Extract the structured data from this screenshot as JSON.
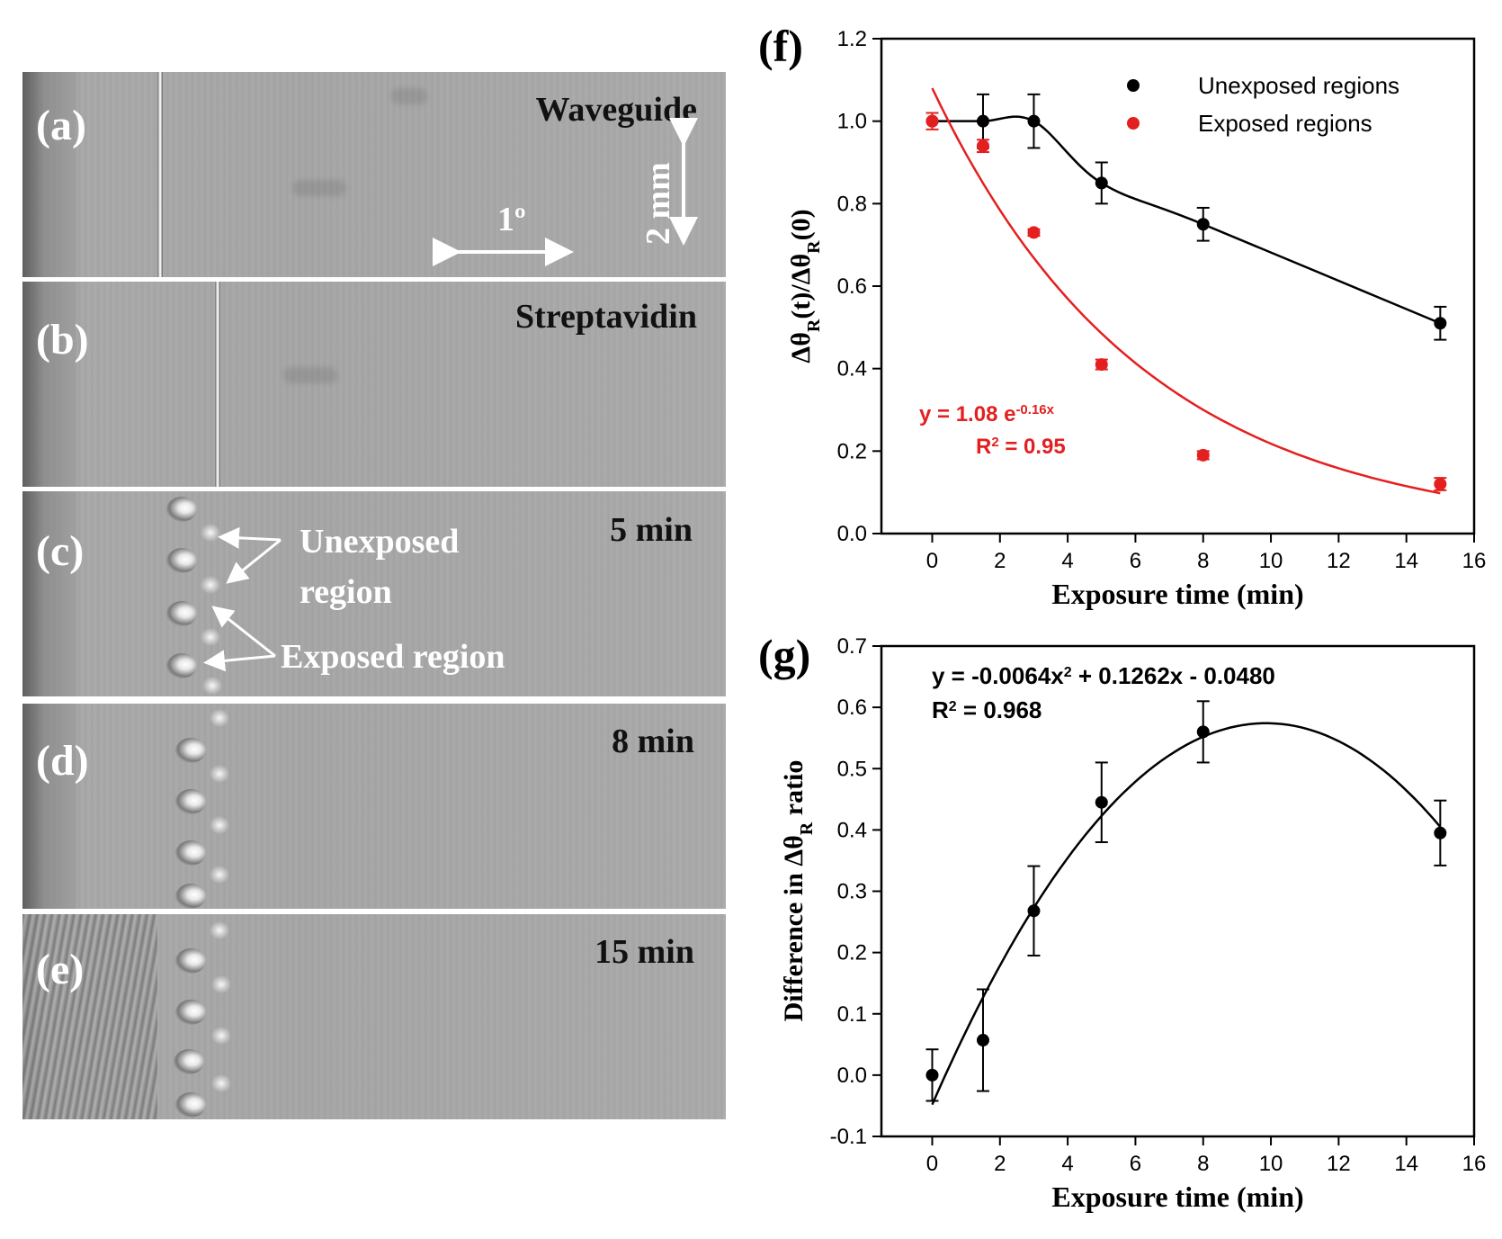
{
  "panels": [
    {
      "label": "(a)",
      "text": "Waveguide",
      "scale_angle": "1º",
      "scale_length": "2 mm"
    },
    {
      "label": "(b)",
      "text": "Streptavidin"
    },
    {
      "label": "(c)",
      "text": "5 min",
      "annotation_unexposed": [
        "Unexposed",
        "region"
      ],
      "annotation_exposed": "Exposed region"
    },
    {
      "label": "(d)",
      "text": "8 min"
    },
    {
      "label": "(e)",
      "text": "15 min"
    }
  ],
  "chart_data": [
    {
      "panel_label": "(f)",
      "type": "scatter",
      "xlabel": "Exposure time (min)",
      "ylabel": "Δθ_R(t)/Δθ_R(0)",
      "xlim": [
        -1.5,
        16
      ],
      "ylim": [
        0,
        1.2
      ],
      "xticks": [
        0,
        2,
        4,
        6,
        8,
        10,
        12,
        14,
        16
      ],
      "yticks": [
        0.0,
        0.2,
        0.4,
        0.6,
        0.8,
        1.0,
        1.2
      ],
      "legend_position": "top-right",
      "series": [
        {
          "name": "Unexposed regions",
          "color": "#000000",
          "connect": "smooth",
          "x": [
            0,
            1.5,
            3,
            5,
            8,
            15
          ],
          "y": [
            1.0,
            1.0,
            1.0,
            0.85,
            0.75,
            0.51
          ],
          "err": [
            0.0,
            0.065,
            0.065,
            0.05,
            0.04,
            0.04
          ]
        },
        {
          "name": "Exposed regions",
          "color": "#e41f1f",
          "x": [
            0,
            1.5,
            3,
            5,
            8,
            15
          ],
          "y": [
            1.0,
            0.94,
            0.73,
            0.41,
            0.19,
            0.12
          ],
          "err": [
            0.02,
            0.015,
            0.008,
            0.012,
            0.01,
            0.015
          ]
        }
      ],
      "fit": {
        "color": "#e41f1f",
        "a": 1.08,
        "b": -0.16,
        "x_range": [
          0,
          15
        ],
        "equation_main": "y = 1.08 e",
        "equation_sup": "-0.16x",
        "r2_main": "R",
        "r2_sup": "2",
        "r2_value": " = 0.95"
      }
    },
    {
      "panel_label": "(g)",
      "type": "scatter",
      "xlabel": "Exposure time (min)",
      "ylabel_main": "Difference in Δθ",
      "ylabel_sub": "R",
      "ylabel_end": " ratio",
      "xlim": [
        -1.5,
        16
      ],
      "ylim": [
        -0.1,
        0.7
      ],
      "xticks": [
        0,
        2,
        4,
        6,
        8,
        10,
        12,
        14,
        16
      ],
      "yticks": [
        -0.1,
        0.0,
        0.1,
        0.2,
        0.3,
        0.4,
        0.5,
        0.6,
        0.7
      ],
      "series": [
        {
          "color": "#000000",
          "x": [
            0,
            1.5,
            3,
            5,
            8,
            15
          ],
          "y": [
            0.0,
            0.057,
            0.268,
            0.445,
            0.56,
            0.395
          ],
          "err": [
            0.042,
            0.083,
            0.073,
            0.065,
            0.05,
            0.053
          ]
        }
      ],
      "fit": {
        "color": "#000000",
        "a": -0.0064,
        "b": 0.1262,
        "c": -0.048,
        "x_range": [
          0,
          15
        ],
        "equation_1": "y = -0.0064x",
        "equation_sup1": "2",
        "equation_2": " + 0.1262x - 0.0480",
        "r2_main": "R",
        "r2_sup": "2",
        "r2_value": " = 0.968"
      }
    }
  ]
}
